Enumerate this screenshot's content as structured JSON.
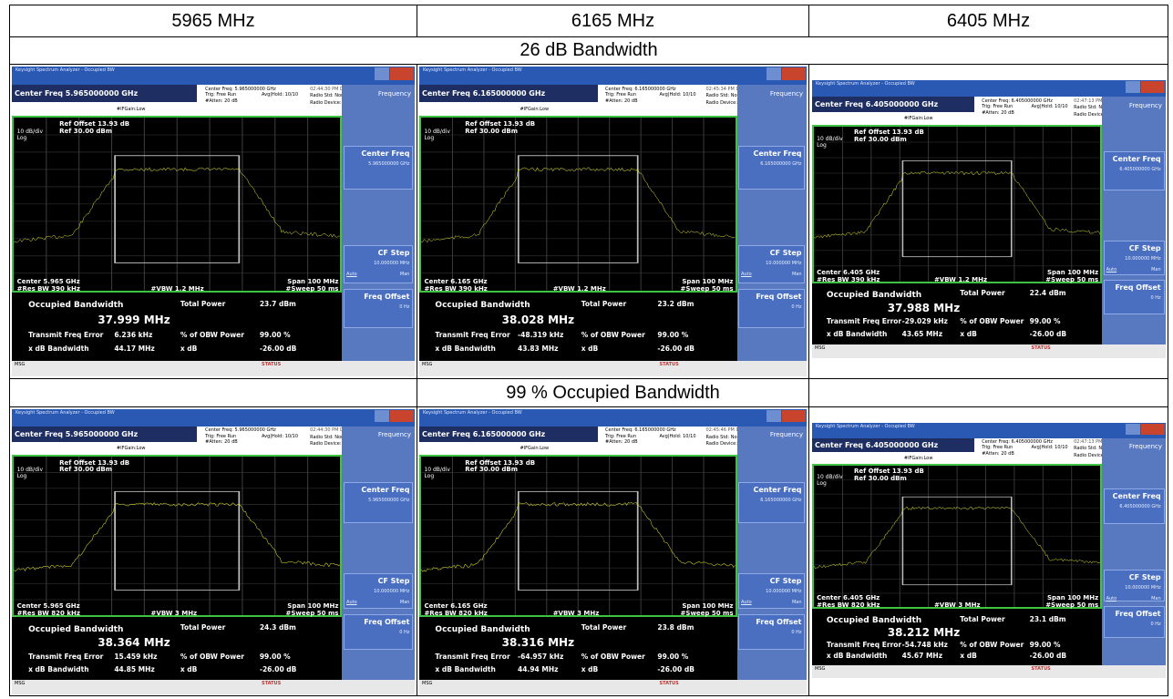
{
  "headers": {
    "col1": "5965 MHz",
    "col2": "6165 MHz",
    "col3": "6405 MHz",
    "row1": "26 dB Bandwidth",
    "row2": "99 % Occupied Bandwidth"
  },
  "common": {
    "window_title": "Keysight Spectrum Analyzer - Occupied BW",
    "side_title": "Frequency",
    "cf_btn": "Center Freq",
    "cf_step_btn": "CF Step",
    "cf_step_val": "10.000000 MHz",
    "freq_offset_btn": "Freq Offset",
    "freq_offset_val": "0 Hz",
    "auto": "Auto",
    "man": "Man",
    "radio_std": "Radio Std: None",
    "radio_dev": "Radio Device: BTS",
    "trig": "Trig: Free Run",
    "avghold": "Avg|Hold: 10/10",
    "atten": "#Atten: 20 dB",
    "ifgain": "#IFGain:Low",
    "ref_offset": "Ref Offset 13.93 dB",
    "ref_level": "Ref 30.00 dBm",
    "db_div": "10 dB/div",
    "log": "Log",
    "span": "Span 100 MHz",
    "sweep": "#Sweep  50 ms",
    "occ_bw": "Occupied Bandwidth",
    "total_power": "Total Power",
    "tx_freq_err": "Transmit Freq Error",
    "pct_obw": "% of OBW Power",
    "pct_obw_val": "99.00 %",
    "xdb_bw": "x dB Bandwidth",
    "xdb": "x dB",
    "xdb_val": "-26.00 dB",
    "status": "STATUS",
    "msg": "MSG",
    "trace_color": "#e8e830",
    "plot_border": "#3ec43e"
  },
  "panels": [
    {
      "center_freq": "Center Freq 5.965000000 GHz",
      "cf_small": "Center Freq: 5.965000000 GHz",
      "cf_btn_val": "5.965000000 GHz",
      "center": "Center  5.965 GHz",
      "rbw": "#Res BW  390 kHz",
      "vbw": "#VBW  1.2 MHz",
      "obw": "37.999 MHz",
      "total_power": "23.7 dBm",
      "freq_err": "6.236 kHz",
      "xdb_bw": "44.17 MHz",
      "timestamp": "02:44:30 PM Dec 15, 2023"
    },
    {
      "center_freq": "Center Freq 6.165000000 GHz",
      "cf_small": "Center Freq: 6.165000000 GHz",
      "cf_btn_val": "6.165000000 GHz",
      "center": "Center  6.165 GHz",
      "rbw": "#Res BW  390 kHz",
      "vbw": "#VBW  1.2 MHz",
      "obw": "38.028 MHz",
      "total_power": "23.2 dBm",
      "freq_err": "-48.319 kHz",
      "xdb_bw": "43.83 MHz",
      "timestamp": "02:45:34 PM Dec 15, 2023"
    },
    {
      "center_freq": "Center Freq 6.405000000 GHz",
      "cf_small": "Center Freq: 6.405000000 GHz",
      "cf_btn_val": "6.405000000 GHz",
      "center": "Center  6.405 GHz",
      "rbw": "#Res BW  390 kHz",
      "vbw": "#VBW  1.2 MHz",
      "obw": "37.988 MHz",
      "total_power": "22.4 dBm",
      "freq_err": "-29.029 kHz",
      "xdb_bw": "43.65 MHz",
      "timestamp": "02:47:13 PM Dec 15, 2023"
    },
    {
      "center_freq": "Center Freq 5.965000000 GHz",
      "cf_small": "Center Freq: 5.965000000 GHz",
      "cf_btn_val": "5.965000000 GHz",
      "center": "Center  5.965 GHz",
      "rbw": "#Res BW  820 kHz",
      "vbw": "#VBW  3 MHz",
      "obw": "38.364 MHz",
      "total_power": "24.3 dBm",
      "freq_err": "15.459 kHz",
      "xdb_bw": "44.85 MHz",
      "timestamp": "02:44:30 PM Dec 15, 2023"
    },
    {
      "center_freq": "Center Freq 6.165000000 GHz",
      "cf_small": "Center Freq: 6.165000000 GHz",
      "cf_btn_val": "6.165000000 GHz",
      "center": "Center  6.165 GHz",
      "rbw": "#Res BW  820 kHz",
      "vbw": "#VBW  3 MHz",
      "obw": "38.316 MHz",
      "total_power": "23.8 dBm",
      "freq_err": "-64.957 kHz",
      "xdb_bw": "44.94 MHz",
      "timestamp": "02:45:46 PM Dec 15, 2023"
    },
    {
      "center_freq": "Center Freq 6.405000000 GHz",
      "cf_small": "Center Freq: 6.405000000 GHz",
      "cf_btn_val": "6.405000000 GHz",
      "center": "Center  6.405 GHz",
      "rbw": "#Res BW  820 kHz",
      "vbw": "#VBW  3 MHz",
      "obw": "38.212 MHz",
      "total_power": "23.1 dBm",
      "freq_err": "-54.748 kHz",
      "xdb_bw": "45.67 MHz",
      "timestamp": "02:47:13 PM Dec 15, 2023"
    }
  ]
}
